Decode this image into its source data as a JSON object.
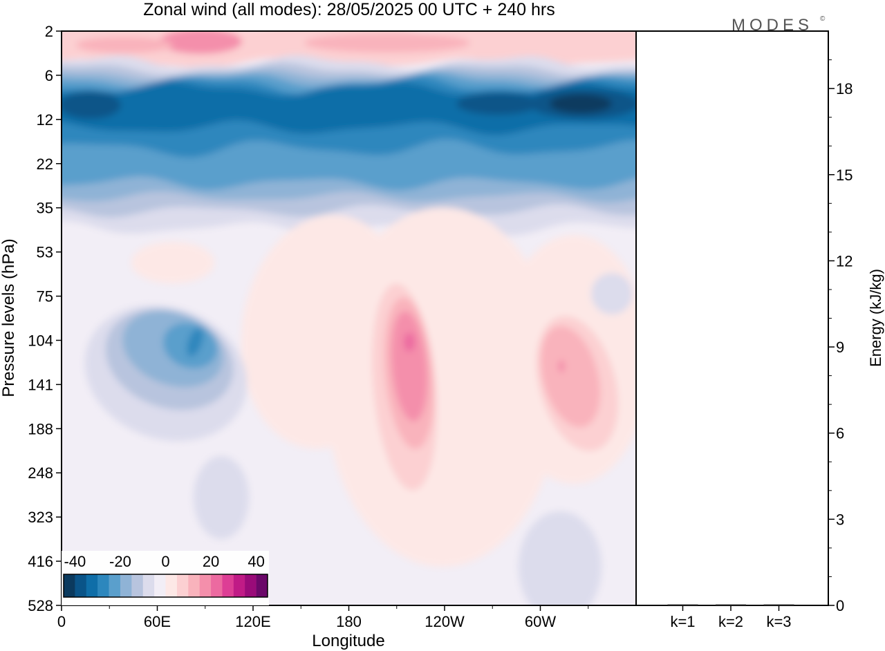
{
  "title": "Zonal wind (all modes):  28/05/2025  00 UTC  + 240 hrs",
  "logo": "MODES",
  "logo_mark": "©",
  "chart_data": [
    {
      "type": "heatmap",
      "title": "Zonal wind (all modes):  28/05/2025  00 UTC  + 240 hrs",
      "xlabel": "Longitude",
      "ylabel": "Pressure levels (hPa)",
      "x_ticks": [
        "0",
        "60E",
        "120E",
        "180",
        "120W",
        "60W"
      ],
      "x_tick_degrees": [
        0,
        60,
        120,
        180,
        240,
        300
      ],
      "x_range": [
        0,
        360
      ],
      "y_ticks": [
        2,
        6,
        12,
        22,
        35,
        53,
        75,
        104,
        141,
        188,
        248,
        323,
        416,
        528
      ],
      "y_axis_inverted": true,
      "colorbar": {
        "tick_labels": [
          "-40",
          "-20",
          "0",
          "20",
          "40"
        ],
        "levels": [
          -45,
          -40,
          -35,
          -30,
          -25,
          -20,
          -15,
          -10,
          -5,
          0,
          5,
          10,
          15,
          20,
          25,
          30,
          35,
          40,
          45
        ],
        "colors": [
          "#0b3a5e",
          "#0a5488",
          "#0f6ea8",
          "#2d87bd",
          "#5a9fcc",
          "#8fb3d6",
          "#b8c4de",
          "#dcdcec",
          "#f2eef6",
          "#fde8e6",
          "#fcd0d2",
          "#f9b3bc",
          "#f48fab",
          "#ec6aa0",
          "#dd3e95",
          "#c01b86",
          "#9a0b79",
          "#6b0869"
        ]
      },
      "features": [
        {
          "name": "stratospheric easterly jet",
          "levels_hPa": [
            6,
            35
          ],
          "value_range": [
            -45,
            -10
          ]
        },
        {
          "name": "upper easterlies 60E-90E",
          "levels_hPa": [
            75,
            188
          ],
          "center": {
            "lon": 82,
            "level_hPa": 104
          },
          "min_value": -25
        },
        {
          "name": "westerly maximum near 150W",
          "levels_hPa": [
            75,
            323
          ],
          "center": {
            "lon": 210,
            "level_hPa": 104
          },
          "max_value": 25
        },
        {
          "name": "westerly maximum near 70W",
          "levels_hPa": [
            75,
            248
          ],
          "center": {
            "lon": 290,
            "level_hPa": 104
          },
          "max_value": 20
        }
      ]
    },
    {
      "type": "bar",
      "ylabel": "Energy (kJ/kg)",
      "categories": [
        "k=1",
        "k=2",
        "k=3"
      ],
      "values": [
        0.02,
        0.01,
        0.01
      ],
      "ylim": [
        0,
        20
      ],
      "y_ticks": [
        0,
        3,
        6,
        9,
        12,
        15,
        18
      ],
      "bar_color": "#333333"
    }
  ]
}
